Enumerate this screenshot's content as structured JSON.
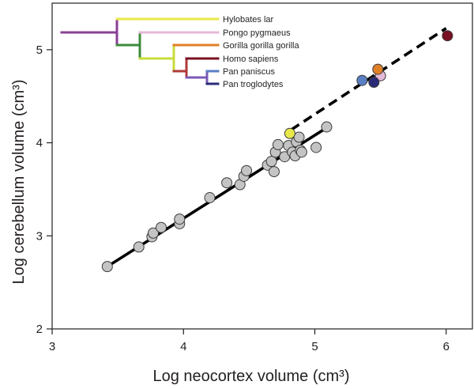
{
  "chart_data": {
    "type": "scatter",
    "title": "",
    "xlabel": "Log neocortex volume (cm³)",
    "ylabel": "Log cerebellum volume (cm³)",
    "xlim": [
      3,
      6.2
    ],
    "ylim": [
      2,
      5.5
    ],
    "xticks": [
      "3",
      "4",
      "5",
      "6"
    ],
    "yticks": [
      "2",
      "3",
      "4",
      "5"
    ],
    "grid": false,
    "series": [
      {
        "name": "",
        "color": "#c4c4c4",
        "points": [
          [
            3.42,
            2.67
          ],
          [
            3.66,
            2.88
          ],
          [
            3.76,
            2.99
          ],
          [
            3.77,
            3.03
          ],
          [
            3.83,
            3.09
          ],
          [
            3.97,
            3.13
          ],
          [
            3.97,
            3.18
          ],
          [
            4.2,
            3.41
          ],
          [
            4.33,
            3.57
          ],
          [
            4.43,
            3.55
          ],
          [
            4.46,
            3.64
          ],
          [
            4.48,
            3.7
          ],
          [
            4.64,
            3.76
          ],
          [
            4.67,
            3.8
          ],
          [
            4.69,
            3.69
          ],
          [
            4.7,
            3.9
          ],
          [
            4.72,
            3.98
          ],
          [
            4.77,
            3.85
          ],
          [
            4.8,
            3.97
          ],
          [
            4.83,
            3.9
          ],
          [
            4.85,
            3.86
          ],
          [
            4.86,
            4.01
          ],
          [
            4.88,
            4.06
          ],
          [
            4.89,
            3.92
          ],
          [
            4.9,
            3.9
          ],
          [
            5.01,
            3.95
          ],
          [
            5.09,
            4.17
          ]
        ]
      },
      {
        "name": "Hylobates lar",
        "color": "#e8e84a",
        "points": [
          [
            4.81,
            4.1
          ]
        ]
      },
      {
        "name": "Pongo pygmaeus",
        "color": "#e6b8d7",
        "points": [
          [
            5.5,
            4.72
          ]
        ]
      },
      {
        "name": "Gorilla gorilla gorilla",
        "color": "#e08026",
        "points": [
          [
            5.48,
            4.79
          ]
        ]
      },
      {
        "name": "Homo sapiens",
        "color": "#7a1023",
        "points": [
          [
            6.01,
            5.15
          ]
        ]
      },
      {
        "name": "Pan paniscus",
        "color": "#5a7fc4",
        "points": [
          [
            5.36,
            4.67
          ]
        ]
      },
      {
        "name": "Pan troglodytes",
        "color": "#2b2a78",
        "points": [
          [
            5.45,
            4.65
          ]
        ]
      }
    ],
    "fit_lines": [
      {
        "style": "solid",
        "x": [
          3.42,
          5.1
        ],
        "y": [
          2.67,
          4.17
        ]
      },
      {
        "style": "dashed",
        "x": [
          4.82,
          6.0
        ],
        "y": [
          4.14,
          5.23
        ]
      }
    ],
    "legend": {
      "type": "phylogenetic-tree",
      "placement": "top-left",
      "taxa": [
        {
          "label": "Hylobates lar",
          "color": "#e8e84a"
        },
        {
          "label": "Pongo pygmaeus",
          "color": "#e6b8d7"
        },
        {
          "label": "Gorilla gorilla gorilla",
          "color": "#e08026"
        },
        {
          "label": "Homo sapiens",
          "color": "#7a1023"
        },
        {
          "label": "Pan paniscus",
          "color": "#5a7fc4"
        },
        {
          "label": "Pan troglodytes",
          "color": "#2b2a78"
        }
      ],
      "branch_colors": {
        "root": "#8a3f96",
        "hominidae": "#3d8b3d",
        "homininae": "#c8dc3c",
        "hominini": "#b03a3a",
        "pan": "#7a5ab4"
      }
    }
  }
}
